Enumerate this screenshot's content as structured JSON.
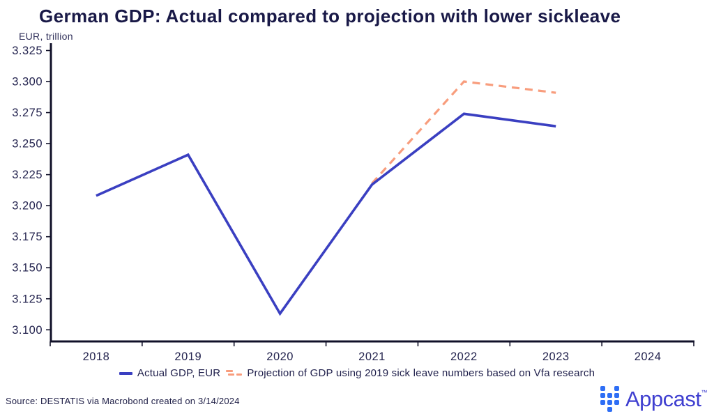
{
  "header": {
    "title": "German GDP: Actual compared to projection with lower sickleave",
    "unit_label": "EUR, trillion"
  },
  "colors": {
    "actual": "#3a3fc1",
    "projection": "#f89d7d",
    "axis": "#101028",
    "tick_text": "#24244f",
    "logo_icon": "#2e6ef5",
    "logo_text": "#3f3fd0"
  },
  "legend": {
    "actual_label": "Actual GDP, EUR",
    "projection_label": "Projection of GDP using 2019 sick leave numbers based on Vfa research"
  },
  "footer": {
    "source": "Source: DESTATIS via Macrobond created on 3/14/2024",
    "brand": "Appcast",
    "trademark": "™"
  },
  "chart_data": {
    "type": "line",
    "title": "German GDP: Actual compared to projection with lower sickleave",
    "xlabel": "",
    "ylabel": "EUR, trillion",
    "x": [
      2018,
      2019,
      2020,
      2021,
      2022,
      2023
    ],
    "x_axis_years": [
      "2018",
      "2019",
      "2020",
      "2021",
      "2022",
      "2023",
      "2024"
    ],
    "series": [
      {
        "name": "Actual GDP, EUR",
        "style": "solid",
        "color_key": "actual",
        "values": [
          3.208,
          3.241,
          3.113,
          3.217,
          3.274,
          3.264
        ]
      },
      {
        "name": "Projection of GDP using 2019 sick leave numbers based on Vfa research",
        "style": "dashed",
        "color_key": "projection",
        "values": [
          null,
          null,
          null,
          3.218,
          3.3,
          3.291
        ]
      }
    ],
    "ylim": [
      3.1,
      3.325
    ],
    "y_tick_step": 0.025,
    "grid": false,
    "legend_position": "bottom"
  }
}
